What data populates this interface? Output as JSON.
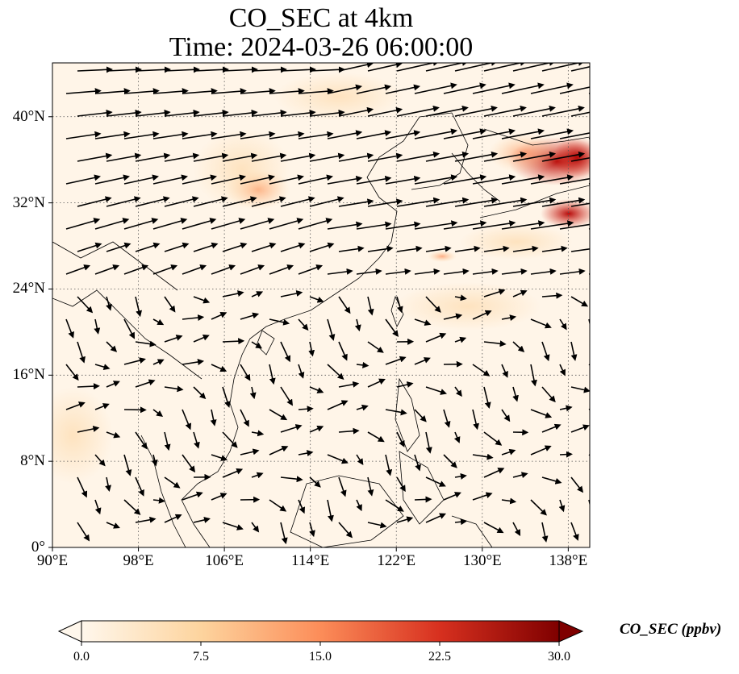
{
  "title": {
    "line1": "CO_SEC at 4km",
    "line2": "Time: 2024-03-26 06:00:00"
  },
  "map": {
    "projection": "PlateCarree",
    "lon_range": [
      90,
      140
    ],
    "lat_range": [
      0,
      45
    ],
    "lat_ticks": [
      {
        "value": 0,
        "label": "0°"
      },
      {
        "value": 8,
        "label": "8°N"
      },
      {
        "value": 16,
        "label": "16°N"
      },
      {
        "value": 24,
        "label": "24°N"
      },
      {
        "value": 32,
        "label": "32°N"
      },
      {
        "value": 40,
        "label": "40°N"
      }
    ],
    "lon_ticks": [
      {
        "value": 90,
        "label": "90°E"
      },
      {
        "value": 98,
        "label": "98°E"
      },
      {
        "value": 106,
        "label": "106°E"
      },
      {
        "value": 114,
        "label": "114°E"
      },
      {
        "value": 122,
        "label": "122°E"
      },
      {
        "value": 130,
        "label": "130°E"
      },
      {
        "value": 138,
        "label": "138°E"
      }
    ],
    "gridlines": true,
    "field": "CO_SEC",
    "vectors": "wind"
  },
  "colorbar": {
    "label": "CO_SEC (ppbv)",
    "cmap": "OrRd",
    "min": 0,
    "max": 30,
    "extend": "both",
    "ticks": [
      {
        "value": 0,
        "label": "0.0"
      },
      {
        "value": 7.5,
        "label": "7.5"
      },
      {
        "value": 15,
        "label": "15.0"
      },
      {
        "value": 22.5,
        "label": "22.5"
      },
      {
        "value": 30,
        "label": "30.0"
      }
    ],
    "colors": [
      "#fff7ec",
      "#fdd49e",
      "#fc8d59",
      "#d7301f",
      "#7f0000"
    ]
  }
}
